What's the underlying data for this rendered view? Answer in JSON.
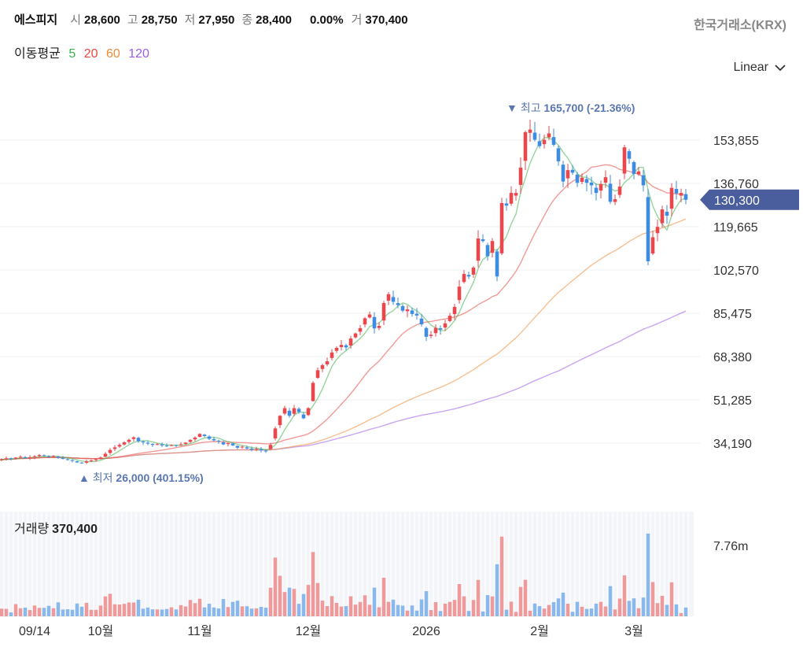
{
  "header": {
    "name": "에스피지",
    "open_label": "시",
    "open": "28,600",
    "high_label": "고",
    "high": "28,750",
    "low_label": "저",
    "low": "27,950",
    "close_label": "종",
    "close": "28,400",
    "change": "0.00%",
    "volume_label": "거",
    "volume": "370,400",
    "exchange": "한국거래소(KRX)"
  },
  "moving_average": {
    "label": "이동평균",
    "periods": [
      {
        "period": "5",
        "color": "#3cb44b"
      },
      {
        "period": "20",
        "color": "#e8473f"
      },
      {
        "period": "60",
        "color": "#f08a36"
      },
      {
        "period": "120",
        "color": "#9b5de5"
      }
    ]
  },
  "scale_selector": {
    "value": "Linear"
  },
  "volume_panel": {
    "label": "거래량",
    "value": "370,400",
    "axis_label": "7.76m"
  },
  "colors": {
    "up": "#e8474c",
    "down": "#3d8ce0",
    "current_price_tag": "#4a5e9e",
    "annotation": "#5a76b0"
  },
  "chart_data": {
    "type": "candlestick",
    "y_ticks": [
      "153,855",
      "136,760",
      "119,665",
      "102,570",
      "85,475",
      "68,380",
      "51,285",
      "34,190"
    ],
    "y_tick_values": [
      153855,
      136760,
      119665,
      102570,
      85475,
      68380,
      51285,
      34190
    ],
    "ylim": [
      17095,
      175000
    ],
    "x_ticks": [
      {
        "label": "09/14",
        "index": 8
      },
      {
        "label": "10월",
        "index": 22
      },
      {
        "label": "11월",
        "index": 43
      },
      {
        "label": "12월",
        "index": 66
      },
      {
        "label": "2026",
        "index": 91
      },
      {
        "label": "2월",
        "index": 115
      },
      {
        "label": "3월",
        "index": 135
      }
    ],
    "last_price": "130,300",
    "annotations": {
      "high": {
        "label": "최고",
        "value": "165,700 (-21.36%)",
        "index": 113
      },
      "low": {
        "label": "최저",
        "value": "26,000 (401.15%)",
        "index": 18
      }
    },
    "closes": [
      27500,
      27800,
      28200,
      28000,
      28500,
      28800,
      28300,
      28600,
      29000,
      29500,
      29200,
      28700,
      29100,
      28400,
      28000,
      27600,
      27200,
      26600,
      26300,
      27000,
      27400,
      27800,
      28500,
      30000,
      31500,
      32500,
      33500,
      34500,
      35500,
      36500,
      35000,
      34500,
      34000,
      33500,
      33800,
      33300,
      33000,
      33400,
      33200,
      33700,
      34400,
      35500,
      36400,
      37800,
      37000,
      35900,
      35300,
      34900,
      33700,
      34200,
      33300,
      32400,
      32800,
      32100,
      31600,
      31900,
      31300,
      31000,
      33500,
      40000,
      45000,
      48000,
      45000,
      48000,
      46500,
      44000,
      48000,
      58000,
      63000,
      65000,
      66500,
      70000,
      71800,
      73000,
      72000,
      75500,
      77500,
      79600,
      83500,
      85000,
      79500,
      80500,
      89500,
      93000,
      90000,
      88700,
      86500,
      87000,
      85200,
      84600,
      81100,
      76200,
      77000,
      79700,
      79000,
      81500,
      84500,
      88000,
      96000,
      101000,
      100000,
      103500,
      115000,
      114000,
      108000,
      114000,
      100000,
      129000,
      128000,
      133000,
      133000,
      143000,
      157000,
      158000,
      154000,
      151500,
      154000,
      156500,
      152000,
      145500,
      137500,
      142000,
      141000,
      137000,
      139000,
      137000,
      136000,
      133000,
      136500,
      139200,
      129500,
      130500,
      135500,
      151000,
      146500,
      140500,
      141500,
      136000,
      106000,
      115500,
      119600,
      126500,
      124000,
      135000,
      132800,
      133000,
      130300
    ],
    "volume_scale": [
      0,
      7760000
    ],
    "volume_tick": 7760000
  }
}
